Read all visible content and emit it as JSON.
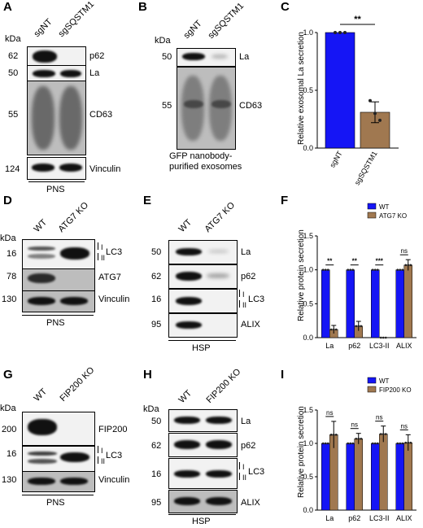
{
  "panelA": {
    "letter": "A",
    "unit": "kDa",
    "lanes": [
      "sgNT",
      "sgSQSTM1"
    ],
    "rows": [
      {
        "mw": "62",
        "protein": "p62"
      },
      {
        "mw": "50",
        "protein": "La"
      },
      {
        "mw": "55",
        "protein": "CD63"
      },
      {
        "mw": "124",
        "protein": "Vinculin"
      }
    ],
    "fraction": "PNS"
  },
  "panelB": {
    "letter": "B",
    "unit": "kDa",
    "lanes": [
      "sgNT",
      "sgSQSTM1"
    ],
    "rows": [
      {
        "mw": "50",
        "protein": "La"
      },
      {
        "mw": "55",
        "protein": "CD63"
      }
    ],
    "caption_line1": "GFP nanobody-",
    "caption_line2": "purified exosomes"
  },
  "panelD": {
    "letter": "D",
    "unit": "kDa",
    "lanes": [
      "WT",
      "ATG7 KO"
    ],
    "rows": [
      {
        "mw": "16",
        "protein": "LC3",
        "sub1": "I",
        "sub2": "II"
      },
      {
        "mw": "78",
        "protein": "ATG7"
      },
      {
        "mw": "130",
        "protein": "Vinculin"
      }
    ],
    "fraction": "PNS"
  },
  "panelE": {
    "letter": "E",
    "lanes": [
      "WT",
      "ATG7 KO"
    ],
    "rows": [
      {
        "mw": "50",
        "protein": "La"
      },
      {
        "mw": "62",
        "protein": "p62"
      },
      {
        "mw": "16",
        "protein": "LC3",
        "sub1": "I",
        "sub2": "II"
      },
      {
        "mw": "95",
        "protein": "ALIX"
      }
    ],
    "fraction": "HSP"
  },
  "panelG": {
    "letter": "G",
    "unit": "kDa",
    "lanes": [
      "WT",
      "FIP200 KO"
    ],
    "rows": [
      {
        "mw": "200",
        "protein": "FIP200"
      },
      {
        "mw": "16",
        "protein": "LC3",
        "sub1": "I",
        "sub2": "II"
      },
      {
        "mw": "130",
        "protein": "Vinculin"
      }
    ],
    "fraction": "PNS"
  },
  "panelH": {
    "letter": "H",
    "unit": "kDa",
    "lanes": [
      "WT",
      "FIP200 KO"
    ],
    "rows": [
      {
        "mw": "50",
        "protein": "La"
      },
      {
        "mw": "62",
        "protein": "p62"
      },
      {
        "mw": "16",
        "protein": "LC3",
        "sub1": "I",
        "sub2": "II"
      },
      {
        "mw": "95",
        "protein": "ALIX"
      }
    ],
    "fraction": "HSP"
  },
  "colors": {
    "wt": "#1515f5",
    "ko": "#a07850"
  },
  "chart_data": [
    {
      "panel": "C",
      "type": "bar",
      "categories": [
        "sgNT",
        "sgSQSTM1"
      ],
      "values": [
        1.0,
        0.31
      ],
      "errors": [
        0.0,
        0.09
      ],
      "points": [
        [
          1.0,
          1.0,
          1.0
        ],
        [
          0.41,
          0.3,
          0.24
        ]
      ],
      "ylabel": "Relative exosomal La secretion",
      "ylim": [
        0,
        1.0
      ],
      "yticks": [
        "0.0",
        "0.5",
        "1.0"
      ],
      "significance": "**"
    },
    {
      "panel": "F",
      "type": "bar",
      "categories": [
        "La",
        "p62",
        "LC3-II",
        "ALIX"
      ],
      "series": [
        {
          "name": "WT",
          "values": [
            1.0,
            1.0,
            1.0,
            1.0
          ],
          "errors": [
            0,
            0,
            0,
            0
          ]
        },
        {
          "name": "ATG7 KO",
          "values": [
            0.12,
            0.17,
            0.0,
            1.07
          ],
          "errors": [
            0.06,
            0.07,
            0,
            0.08
          ]
        }
      ],
      "ylabel": "Relative protein secretion",
      "ylim": [
        0,
        1.5
      ],
      "yticks": [
        "0.0",
        "0.5",
        "1.0",
        "1.5"
      ],
      "significance": [
        "**",
        "**",
        "***",
        "ns"
      ],
      "legend": "top-right"
    },
    {
      "panel": "I",
      "type": "bar",
      "categories": [
        "La",
        "p62",
        "LC3-II",
        "ALIX"
      ],
      "series": [
        {
          "name": "WT",
          "values": [
            1.0,
            1.0,
            1.0,
            1.0
          ],
          "errors": [
            0,
            0,
            0,
            0
          ]
        },
        {
          "name": "FIP200 KO",
          "values": [
            1.13,
            1.07,
            1.14,
            1.01
          ],
          "errors": [
            0.2,
            0.08,
            0.12,
            0.12
          ]
        }
      ],
      "ylabel": "Relative protein secretion",
      "ylim": [
        0,
        1.5
      ],
      "yticks": [
        "0.0",
        "0.5",
        "1.0",
        "1.5"
      ],
      "significance": [
        "ns",
        "ns",
        "ns",
        "ns"
      ],
      "legend": "top-right"
    }
  ]
}
